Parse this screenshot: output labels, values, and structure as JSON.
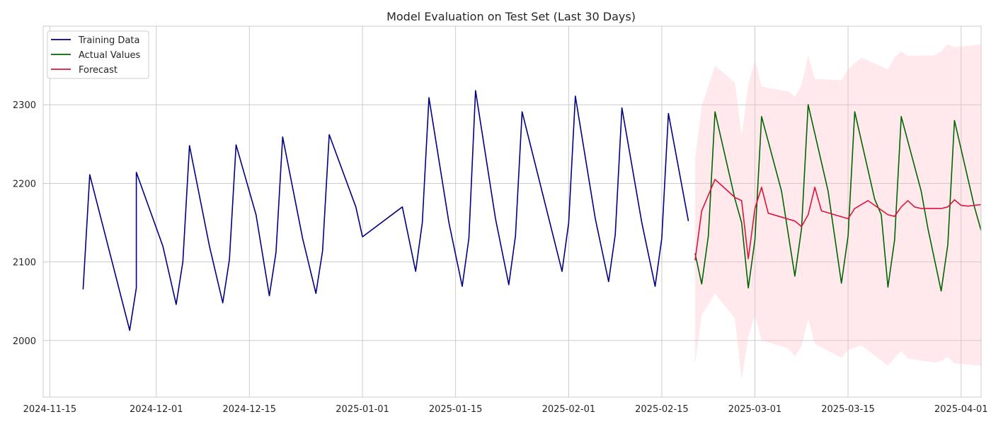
{
  "chart_data": {
    "type": "line",
    "title": "Model Evaluation on Test Set (Last 30 Days)",
    "xlabel": "",
    "ylabel": "",
    "x_axis": "date",
    "xlim": [
      "2024-11-14",
      "2025-04-04"
    ],
    "ylim": [
      1928,
      2400
    ],
    "x_ticks": [
      "2024-11-15",
      "2024-12-01",
      "2024-12-15",
      "2025-01-01",
      "2025-01-15",
      "2025-02-01",
      "2025-02-15",
      "2025-03-01",
      "2025-03-15",
      "2025-04-01"
    ],
    "y_ticks": [
      2000,
      2100,
      2200,
      2300
    ],
    "grid": true,
    "legend_position": "top-left",
    "series": [
      {
        "name": "Training Data",
        "color": "#000080",
        "points": [
          [
            "2024-11-20",
            2065
          ],
          [
            "2024-11-21",
            2211
          ],
          [
            "2024-11-27",
            2013
          ],
          [
            "2024-11-28",
            2067
          ],
          [
            "2024-11-28",
            2214
          ],
          [
            "2024-12-02",
            2120
          ],
          [
            "2024-12-04",
            2046
          ],
          [
            "2024-12-05",
            2100
          ],
          [
            "2024-12-06",
            2248
          ],
          [
            "2024-12-09",
            2120
          ],
          [
            "2024-12-11",
            2048
          ],
          [
            "2024-12-12",
            2103
          ],
          [
            "2024-12-13",
            2249
          ],
          [
            "2024-12-16",
            2160
          ],
          [
            "2024-12-18",
            2057
          ],
          [
            "2024-12-19",
            2112
          ],
          [
            "2024-12-20",
            2259
          ],
          [
            "2024-12-23",
            2130
          ],
          [
            "2024-12-25",
            2060
          ],
          [
            "2024-12-26",
            2114
          ],
          [
            "2024-12-27",
            2262
          ],
          [
            "2024-12-31",
            2170
          ],
          [
            "2025-01-01",
            2132
          ],
          [
            "2025-01-07",
            2170
          ],
          [
            "2025-01-09",
            2088
          ],
          [
            "2025-01-10",
            2150
          ],
          [
            "2025-01-11",
            2309
          ],
          [
            "2025-01-14",
            2150
          ],
          [
            "2025-01-16",
            2069
          ],
          [
            "2025-01-17",
            2130
          ],
          [
            "2025-01-18",
            2318
          ],
          [
            "2025-01-21",
            2155
          ],
          [
            "2025-01-23",
            2071
          ],
          [
            "2025-01-24",
            2133
          ],
          [
            "2025-01-25",
            2291
          ],
          [
            "2025-01-31",
            2088
          ],
          [
            "2025-02-01",
            2150
          ],
          [
            "2025-02-02",
            2311
          ],
          [
            "2025-02-05",
            2155
          ],
          [
            "2025-02-07",
            2075
          ],
          [
            "2025-02-08",
            2135
          ],
          [
            "2025-02-09",
            2296
          ],
          [
            "2025-02-12",
            2150
          ],
          [
            "2025-02-14",
            2069
          ],
          [
            "2025-02-15",
            2130
          ],
          [
            "2025-02-16",
            2289
          ],
          [
            "2025-02-19",
            2152
          ]
        ]
      },
      {
        "name": "Actual Values",
        "color": "#006400",
        "points": [
          [
            "2025-02-20",
            2111
          ],
          [
            "2025-02-21",
            2072
          ],
          [
            "2025-02-22",
            2133
          ],
          [
            "2025-02-23",
            2291
          ],
          [
            "2025-02-26",
            2180
          ],
          [
            "2025-02-27",
            2150
          ],
          [
            "2025-02-28",
            2067
          ],
          [
            "2025-03-01",
            2128
          ],
          [
            "2025-03-02",
            2285
          ],
          [
            "2025-03-05",
            2190
          ],
          [
            "2025-03-07",
            2082
          ],
          [
            "2025-03-08",
            2142
          ],
          [
            "2025-03-09",
            2300
          ],
          [
            "2025-03-12",
            2190
          ],
          [
            "2025-03-14",
            2073
          ],
          [
            "2025-03-15",
            2133
          ],
          [
            "2025-03-16",
            2291
          ],
          [
            "2025-03-19",
            2180
          ],
          [
            "2025-03-20",
            2160
          ],
          [
            "2025-03-21",
            2068
          ],
          [
            "2025-03-22",
            2128
          ],
          [
            "2025-03-23",
            2285
          ],
          [
            "2025-03-26",
            2190
          ],
          [
            "2025-03-27",
            2143
          ],
          [
            "2025-03-29",
            2063
          ],
          [
            "2025-03-30",
            2122
          ],
          [
            "2025-03-31",
            2280
          ],
          [
            "2025-04-03",
            2170
          ],
          [
            "2025-04-04",
            2140
          ]
        ]
      },
      {
        "name": "Forecast",
        "color": "#dc143c",
        "points": [
          [
            "2025-02-20",
            2102
          ],
          [
            "2025-02-21",
            2165
          ],
          [
            "2025-02-23",
            2205
          ],
          [
            "2025-02-26",
            2182
          ],
          [
            "2025-02-27",
            2178
          ],
          [
            "2025-02-28",
            2104
          ],
          [
            "2025-03-01",
            2168
          ],
          [
            "2025-03-02",
            2195
          ],
          [
            "2025-03-03",
            2162
          ],
          [
            "2025-03-07",
            2152
          ],
          [
            "2025-03-08",
            2145
          ],
          [
            "2025-03-09",
            2160
          ],
          [
            "2025-03-10",
            2195
          ],
          [
            "2025-03-11",
            2165
          ],
          [
            "2025-03-15",
            2155
          ],
          [
            "2025-03-16",
            2168
          ],
          [
            "2025-03-18",
            2178
          ],
          [
            "2025-03-21",
            2160
          ],
          [
            "2025-03-22",
            2158
          ],
          [
            "2025-03-23",
            2170
          ],
          [
            "2025-03-24",
            2178
          ],
          [
            "2025-03-25",
            2170
          ],
          [
            "2025-03-26",
            2168
          ],
          [
            "2025-03-29",
            2168
          ],
          [
            "2025-03-30",
            2170
          ],
          [
            "2025-03-31",
            2179
          ],
          [
            "2025-04-01",
            2172
          ],
          [
            "2025-04-02",
            2171
          ],
          [
            "2025-04-04",
            2173
          ]
        ]
      }
    ],
    "confidence_band": {
      "color": "#ffb6c1",
      "series": "Forecast",
      "upper": [
        [
          "2025-02-20",
          2230
        ],
        [
          "2025-02-21",
          2298
        ],
        [
          "2025-02-23",
          2350
        ],
        [
          "2025-02-26",
          2328
        ],
        [
          "2025-02-27",
          2260
        ],
        [
          "2025-02-28",
          2325
        ],
        [
          "2025-03-01",
          2357
        ],
        [
          "2025-03-02",
          2323
        ],
        [
          "2025-03-06",
          2317
        ],
        [
          "2025-03-07",
          2310
        ],
        [
          "2025-03-08",
          2325
        ],
        [
          "2025-03-09",
          2363
        ],
        [
          "2025-03-10",
          2333
        ],
        [
          "2025-03-14",
          2331
        ],
        [
          "2025-03-15",
          2345
        ],
        [
          "2025-03-17",
          2360
        ],
        [
          "2025-03-21",
          2345
        ],
        [
          "2025-03-22",
          2360
        ],
        [
          "2025-03-23",
          2368
        ],
        [
          "2025-03-24",
          2362
        ],
        [
          "2025-03-28",
          2363
        ],
        [
          "2025-03-29",
          2368
        ],
        [
          "2025-03-30",
          2377
        ],
        [
          "2025-03-31",
          2373
        ],
        [
          "2025-04-04",
          2377
        ]
      ],
      "lower": [
        [
          "2025-02-20",
          1970
        ],
        [
          "2025-02-21",
          2032
        ],
        [
          "2025-02-23",
          2060
        ],
        [
          "2025-02-26",
          2028
        ],
        [
          "2025-02-27",
          1950
        ],
        [
          "2025-02-28",
          2005
        ],
        [
          "2025-03-01",
          2032
        ],
        [
          "2025-03-02",
          2000
        ],
        [
          "2025-03-06",
          1990
        ],
        [
          "2025-03-07",
          1980
        ],
        [
          "2025-03-08",
          1993
        ],
        [
          "2025-03-09",
          2027
        ],
        [
          "2025-03-10",
          1996
        ],
        [
          "2025-03-14",
          1978
        ],
        [
          "2025-03-15",
          1988
        ],
        [
          "2025-03-17",
          1994
        ],
        [
          "2025-03-21",
          1968
        ],
        [
          "2025-03-22",
          1978
        ],
        [
          "2025-03-23",
          1987
        ],
        [
          "2025-03-24",
          1977
        ],
        [
          "2025-03-28",
          1972
        ],
        [
          "2025-03-29",
          1974
        ],
        [
          "2025-03-30",
          1979
        ],
        [
          "2025-03-31",
          1971
        ],
        [
          "2025-04-04",
          1968
        ]
      ]
    }
  }
}
